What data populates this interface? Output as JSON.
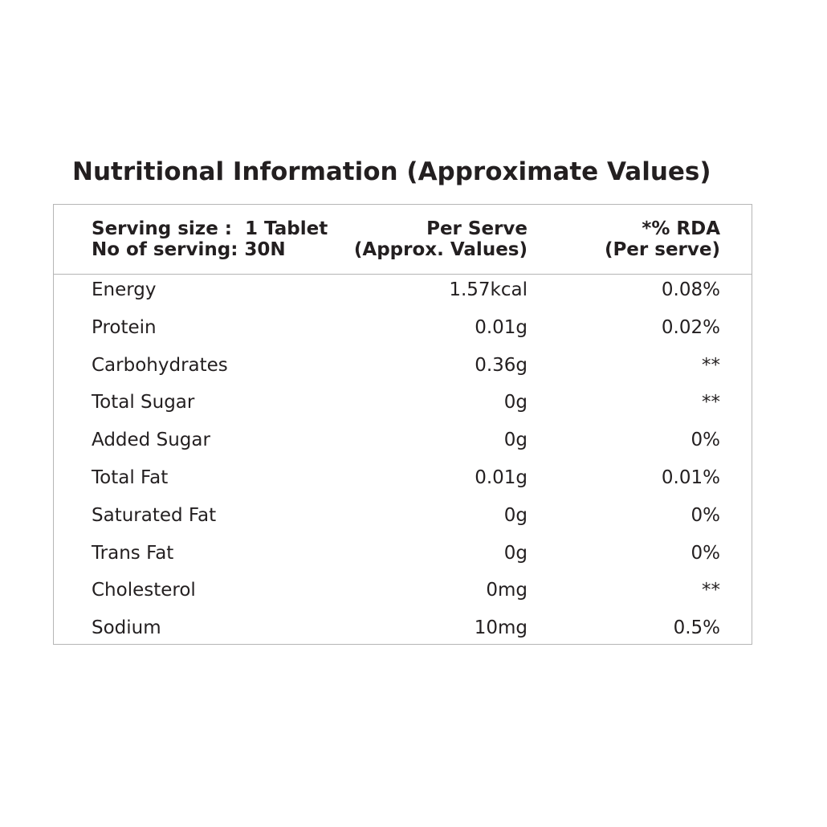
{
  "title": "Nutritional Information (Approximate Values)",
  "table": {
    "header": [
      [
        "Serving size :  1 Tablet",
        "No of serving: 30N"
      ],
      [
        "Per Serve",
        "(Approx. Values)"
      ],
      [
        "*% RDA",
        "(Per serve)"
      ]
    ],
    "rows": [
      [
        "Energy",
        "1.57kcal",
        "0.08%"
      ],
      [
        "Protein",
        "0.01g",
        "0.02%"
      ],
      [
        "Carbohydrates",
        "0.36g",
        "**"
      ],
      [
        "Total Sugar",
        "0g",
        "**"
      ],
      [
        "Added Sugar",
        "0g",
        "0%"
      ],
      [
        "Total Fat",
        "0.01g",
        "0.01%"
      ],
      [
        "Saturated Fat",
        "0g",
        "0%"
      ],
      [
        "Trans Fat",
        "0g",
        "0%"
      ],
      [
        "Cholesterol",
        "0mg",
        "**"
      ],
      [
        "Sodium",
        "10mg",
        "0.5%"
      ]
    ]
  }
}
